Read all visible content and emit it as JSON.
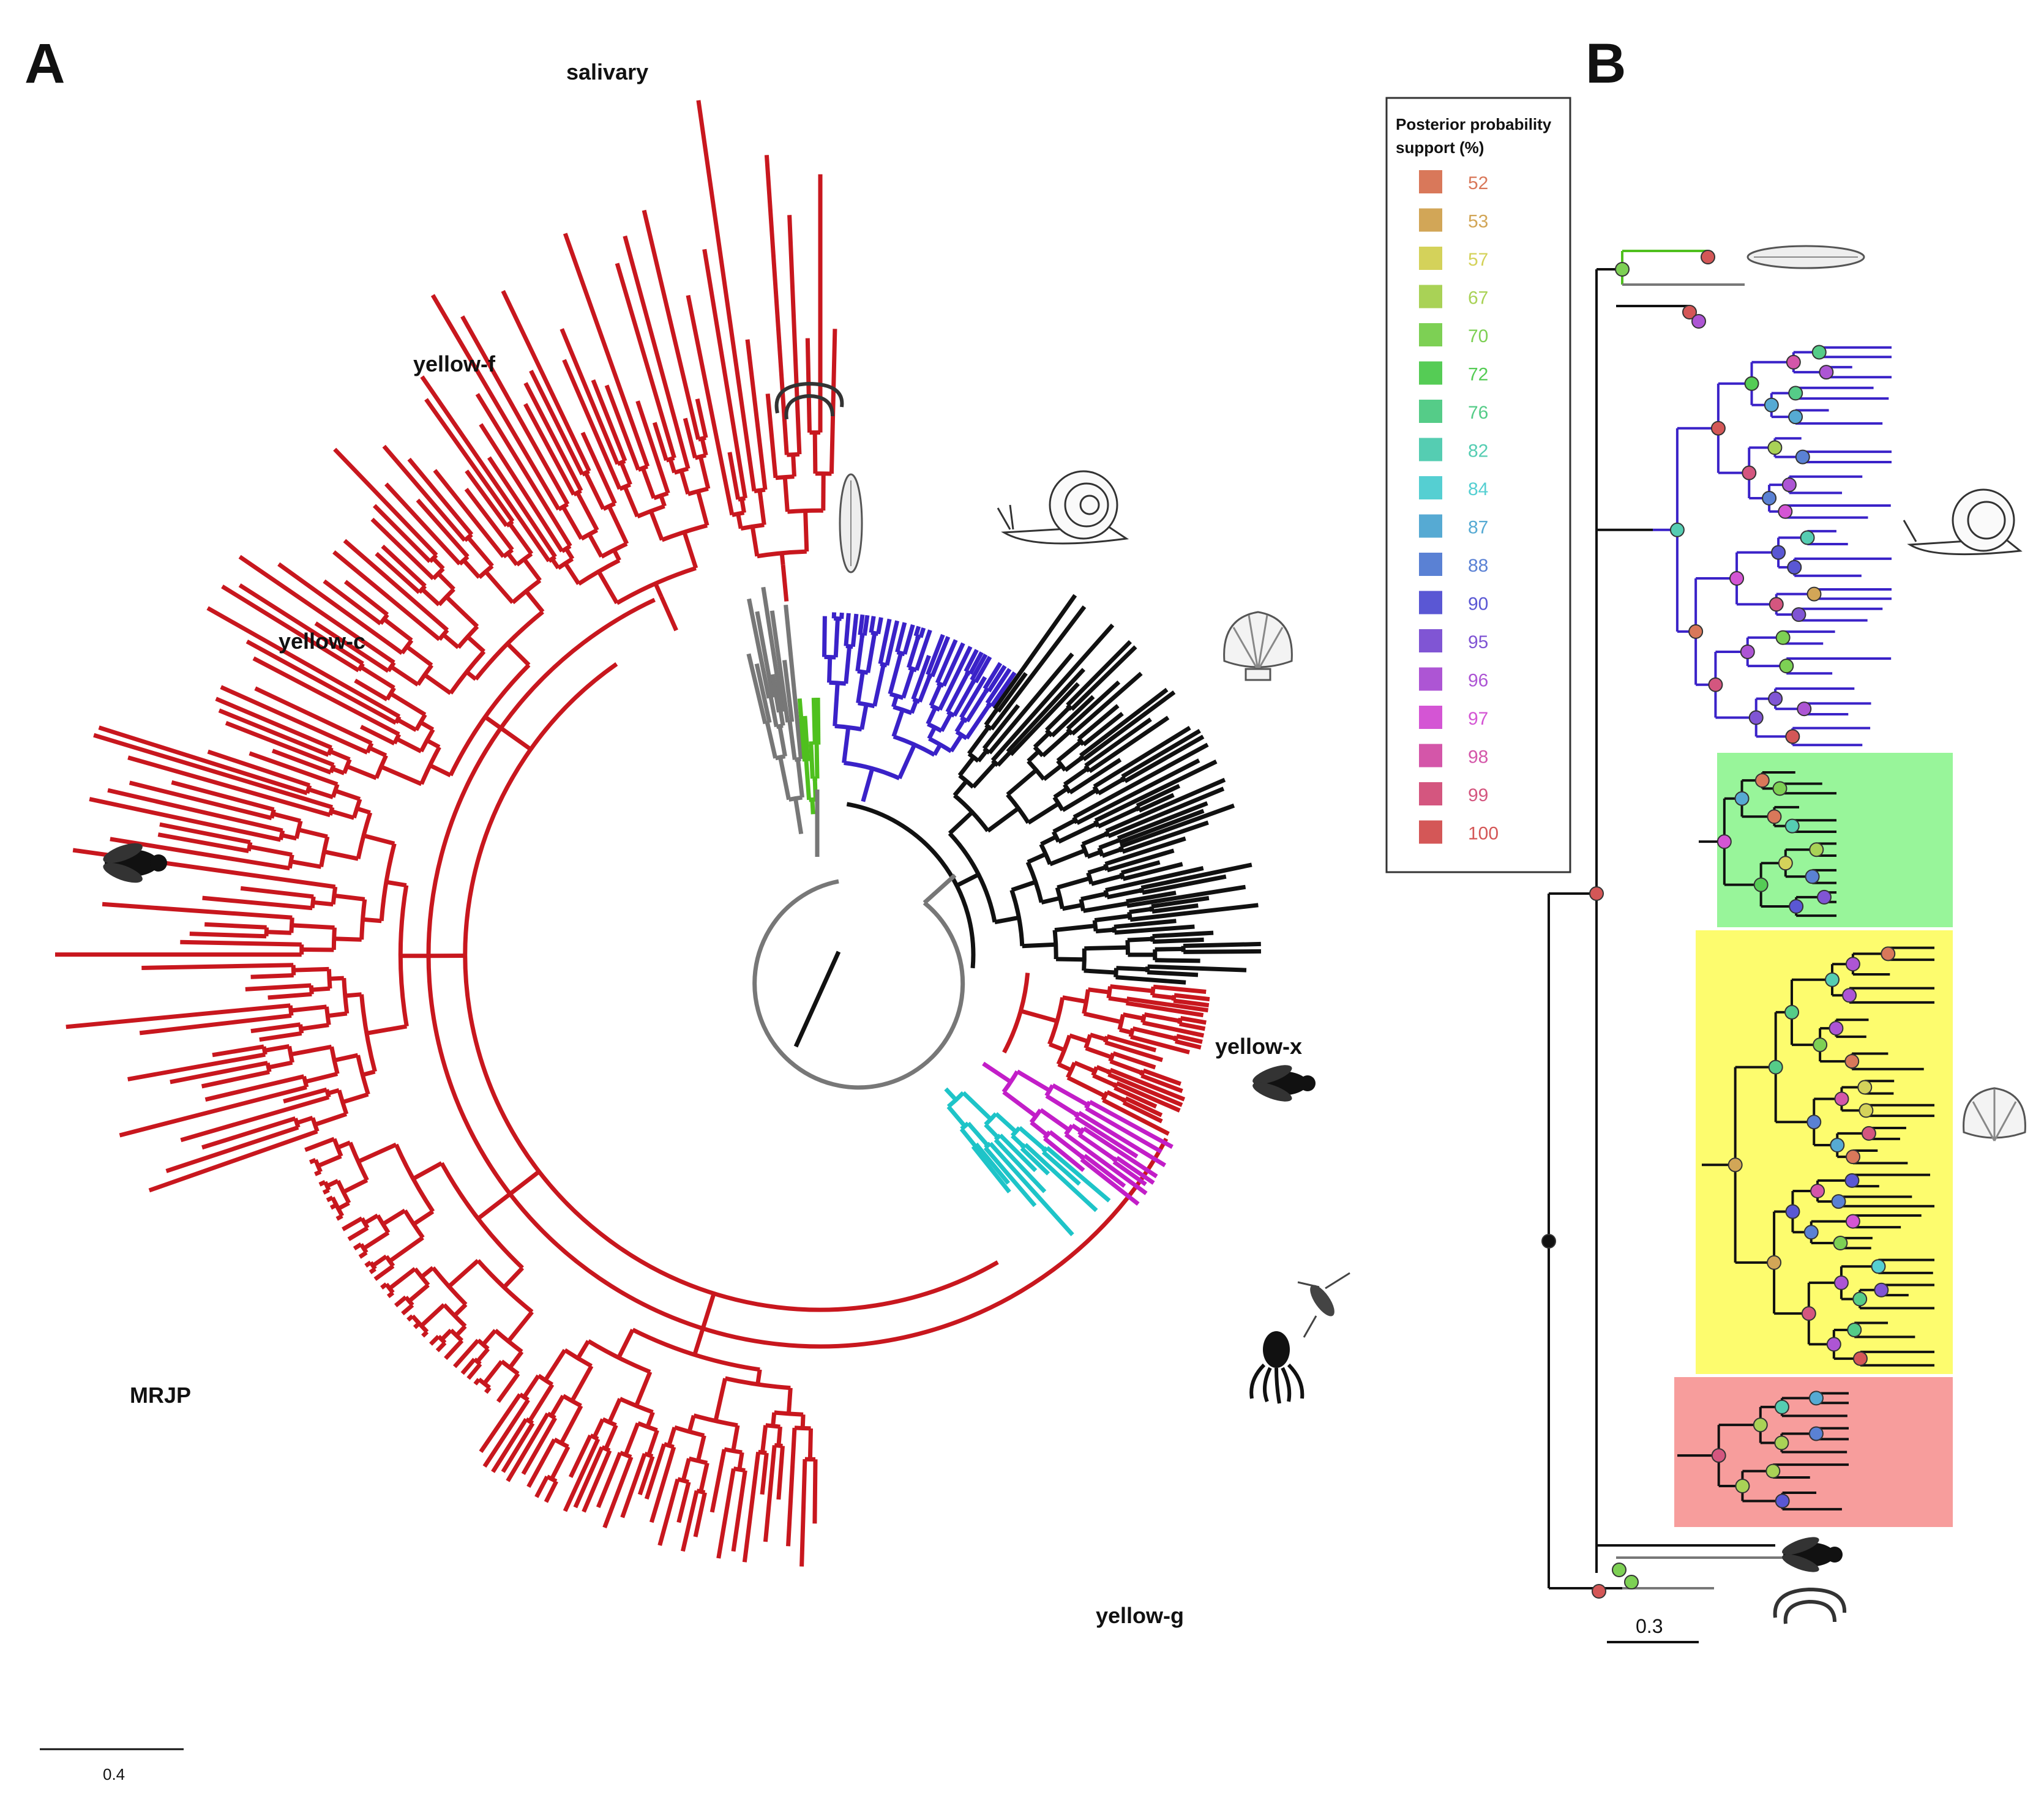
{
  "figure": {
    "panel_a": {
      "letter": "A",
      "labels": {
        "salivary": "salivary",
        "yellow_f": "yellow-f",
        "yellow_c": "yellow-c",
        "yellow_x": "yellow-x",
        "mrjp": "MRJP",
        "yellow_g": "yellow-g"
      },
      "scale_bar": "0.4",
      "clade_colors": {
        "insect": "#c8171e",
        "gastropod": "#3a22c8",
        "bivalve": "#111111",
        "outgroup": "#777777",
        "green": "#4fc01e",
        "magenta": "#c21ec8",
        "cyan": "#1ec4c8"
      }
    },
    "panel_b": {
      "letter": "B",
      "scale_bar": "0.3",
      "highlight_colors": {
        "green": "#98f59a",
        "yellow": "#fdfc6e",
        "red": "#f79d9c"
      }
    },
    "legend": {
      "title_line1": "Posterior probability",
      "title_line2": "support (%)",
      "items": [
        {
          "value": "52",
          "color": "#d9785a"
        },
        {
          "value": "53",
          "color": "#d2a657"
        },
        {
          "value": "57",
          "color": "#d4d25a"
        },
        {
          "value": "67",
          "color": "#a9d256"
        },
        {
          "value": "70",
          "color": "#7dd054"
        },
        {
          "value": "72",
          "color": "#55cc55"
        },
        {
          "value": "76",
          "color": "#55cc88"
        },
        {
          "value": "82",
          "color": "#55cdb2"
        },
        {
          "value": "84",
          "color": "#55cfd2"
        },
        {
          "value": "87",
          "color": "#56aad3"
        },
        {
          "value": "88",
          "color": "#5a81d4"
        },
        {
          "value": "90",
          "color": "#5a57d4"
        },
        {
          "value": "95",
          "color": "#8055d4"
        },
        {
          "value": "96",
          "color": "#ad55d4"
        },
        {
          "value": "97",
          "color": "#d455d4"
        },
        {
          "value": "98",
          "color": "#d456a9"
        },
        {
          "value": "99",
          "color": "#d4567f"
        },
        {
          "value": "100",
          "color": "#d45757"
        }
      ]
    }
  }
}
